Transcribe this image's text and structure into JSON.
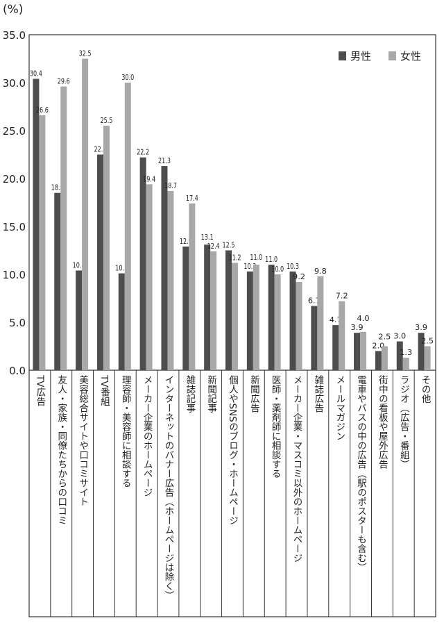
{
  "chart_data": {
    "type": "bar",
    "unit_label": "(%)",
    "ylim": [
      0,
      35
    ],
    "yticks": [
      "0.0",
      "5.0",
      "10.0",
      "15.0",
      "20.0",
      "25.0",
      "30.0",
      "35.0"
    ],
    "legend_position": "top-right",
    "categories": [
      "TV広告",
      "友人・家族・同僚たちからの口コミ",
      "美容総合サイトや口コミサイト",
      "TV番組",
      "理容師・美容師に相談する",
      "メーカー企業のホームページ",
      "インターネットのバナー広告（ホームページは除く）",
      "雑誌記事",
      "新聞記事",
      "個人やSNSのブログ・ホームページ",
      "新聞広告",
      "医師・薬剤師に相談する",
      "メーカー企業・マスコミ以外のホームページ",
      "雑誌広告",
      "メールマガジン",
      "電車やバスの中の広告（駅のポスターも含む）",
      "街中の看板や屋外広告",
      "ラジオ（広告・番組）",
      "その他"
    ],
    "series": [
      {
        "name": "男性",
        "color": "#4d4d4d",
        "values": [
          30.4,
          18.5,
          10.4,
          22.5,
          10.1,
          22.2,
          21.3,
          12.9,
          13.1,
          12.5,
          10.3,
          11.0,
          10.3,
          6.7,
          4.7,
          3.9,
          2.0,
          3.0,
          3.9
        ]
      },
      {
        "name": "女性",
        "color": "#a8a8a8",
        "values": [
          26.6,
          29.6,
          32.5,
          25.5,
          30.0,
          19.4,
          18.7,
          17.4,
          12.4,
          11.2,
          11.0,
          10.0,
          9.2,
          9.8,
          7.2,
          4.0,
          2.5,
          1.3,
          2.5
        ]
      }
    ]
  }
}
